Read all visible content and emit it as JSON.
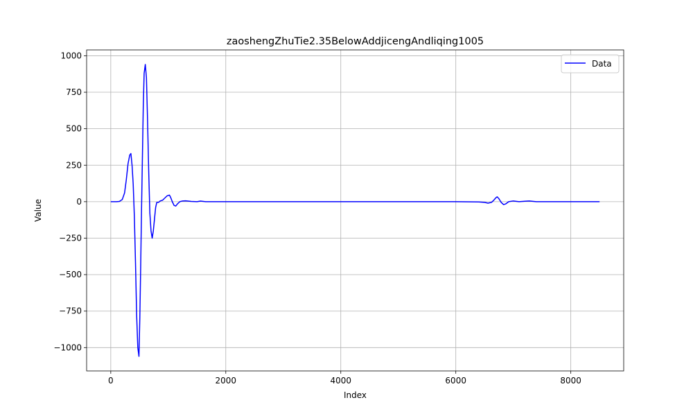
{
  "chart_data": {
    "type": "line",
    "title": "zaoshengZhuTie2.35BelowAddjicengAndliqing1005",
    "xlabel": "Index",
    "ylabel": "Value",
    "xlim": [
      -420,
      8920
    ],
    "ylim": [
      -1160,
      1040
    ],
    "x_ticks": [
      0,
      2000,
      4000,
      6000,
      8000
    ],
    "x_tick_labels": [
      "0",
      "2000",
      "4000",
      "6000",
      "8000"
    ],
    "y_ticks": [
      1000,
      750,
      500,
      250,
      0,
      -250,
      -500,
      -750,
      -1000
    ],
    "y_tick_labels": [
      "1000",
      "750",
      "500",
      "250",
      "0",
      "−250",
      "−500",
      "−750",
      "−1000"
    ],
    "grid": true,
    "legend_position": "top-right",
    "series": [
      {
        "name": "Data",
        "color": "#0000ff",
        "x": [
          0,
          100,
          150,
          200,
          240,
          270,
          300,
          330,
          350,
          370,
          390,
          410,
          430,
          450,
          470,
          490,
          505,
          520,
          535,
          550,
          565,
          580,
          600,
          620,
          640,
          660,
          680,
          700,
          720,
          740,
          760,
          780,
          800,
          830,
          860,
          900,
          940,
          980,
          1020,
          1040,
          1070,
          1100,
          1130,
          1160,
          1200,
          1250,
          1300,
          1400,
          1500,
          1560,
          1650,
          1800,
          2000,
          3000,
          4000,
          5000,
          6000,
          6400,
          6500,
          6560,
          6620,
          6660,
          6700,
          6720,
          6750,
          6790,
          6830,
          6870,
          6920,
          7000,
          7100,
          7200,
          7280,
          7400,
          7600,
          8000,
          8500
        ],
        "y": [
          0,
          0,
          2,
          15,
          60,
          150,
          260,
          320,
          330,
          250,
          120,
          -100,
          -420,
          -780,
          -1000,
          -1060,
          -800,
          -450,
          -50,
          300,
          650,
          880,
          940,
          850,
          550,
          200,
          -80,
          -200,
          -250,
          -200,
          -120,
          -40,
          -5,
          -5,
          5,
          10,
          25,
          40,
          45,
          30,
          0,
          -25,
          -30,
          -15,
          0,
          5,
          6,
          2,
          0,
          4,
          0,
          0,
          0,
          0,
          0,
          0,
          0,
          -2,
          -5,
          -10,
          -5,
          10,
          28,
          33,
          20,
          -5,
          -20,
          -15,
          0,
          5,
          0,
          3,
          5,
          0,
          0,
          0,
          0
        ]
      }
    ]
  }
}
